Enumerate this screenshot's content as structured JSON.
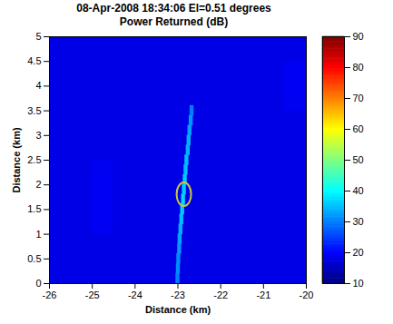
{
  "chart_data": {
    "type": "heatmap",
    "title": "08-Apr-2008 18:34:06 El=0.51 degrees",
    "subtitle": "Power Returned (dB)",
    "xlabel": "Distance (km)",
    "ylabel": "Distance (km)",
    "xlim": [
      -26,
      -20
    ],
    "ylim": [
      0,
      5
    ],
    "xticks": [
      -26,
      -25,
      -24,
      -23,
      -22,
      -21,
      -20
    ],
    "yticks": [
      0,
      0.5,
      1,
      1.5,
      2,
      2.5,
      3,
      3.5,
      4,
      4.5,
      5
    ],
    "cells": {
      "x": [
        -25.75,
        -25.25,
        -24.75,
        -24.25,
        -23.75,
        -23.25,
        -22.75,
        -22.25,
        -21.75,
        -21.25,
        -20.75,
        -20.25
      ],
      "y": [
        0.25,
        0.75,
        1.25,
        1.75,
        2.25,
        2.75,
        3.25,
        3.75,
        4.25,
        4.75
      ],
      "values": [
        [
          18,
          18,
          18,
          18,
          18,
          18,
          18,
          18,
          18,
          18,
          18,
          18
        ],
        [
          18,
          18,
          18,
          18,
          18,
          18,
          18,
          18,
          18,
          18,
          18,
          18
        ],
        [
          18,
          18,
          19,
          18,
          18,
          18,
          18,
          18,
          18,
          18,
          18,
          18
        ],
        [
          18,
          18,
          19,
          18,
          18,
          18,
          18,
          18,
          18,
          18,
          18,
          18
        ],
        [
          18,
          18,
          19,
          18,
          18,
          18,
          18,
          18,
          18,
          18,
          18,
          18
        ],
        [
          18,
          18,
          18,
          18,
          18,
          18,
          18,
          18,
          18,
          18,
          18,
          18
        ],
        [
          18,
          18,
          18,
          18,
          18,
          18,
          18,
          18,
          18,
          18,
          18,
          18
        ],
        [
          18,
          18,
          18,
          18,
          18,
          18,
          18,
          18,
          18,
          18,
          18,
          19
        ],
        [
          18,
          18,
          18,
          18,
          18,
          18,
          18,
          18,
          18,
          18,
          18,
          19
        ],
        [
          18,
          18,
          18,
          18,
          18,
          18,
          18,
          18,
          18,
          18,
          18,
          18
        ]
      ]
    },
    "track": {
      "x": [
        -23.0,
        -22.99,
        -22.98,
        -22.96,
        -22.95,
        -22.93,
        -22.91,
        -22.89,
        -22.87,
        -22.85,
        -22.83,
        -22.81,
        -22.79,
        -22.76,
        -22.74,
        -22.72,
        -22.69,
        -22.67
      ],
      "y": [
        0.1,
        0.3,
        0.5,
        0.7,
        0.9,
        1.1,
        1.3,
        1.5,
        1.7,
        1.9,
        2.1,
        2.3,
        2.5,
        2.7,
        2.9,
        3.1,
        3.3,
        3.5
      ],
      "values": [
        30,
        31,
        31,
        32,
        33,
        34,
        35,
        36,
        37,
        36,
        36,
        35,
        35,
        34,
        34,
        33,
        32,
        30
      ]
    },
    "highlight": {
      "x": -22.85,
      "y": 1.8,
      "color": "#c8c83c"
    },
    "colorbar": {
      "range": [
        10,
        90
      ],
      "ticks": [
        10,
        20,
        30,
        40,
        50,
        60,
        70,
        80,
        90
      ]
    }
  }
}
